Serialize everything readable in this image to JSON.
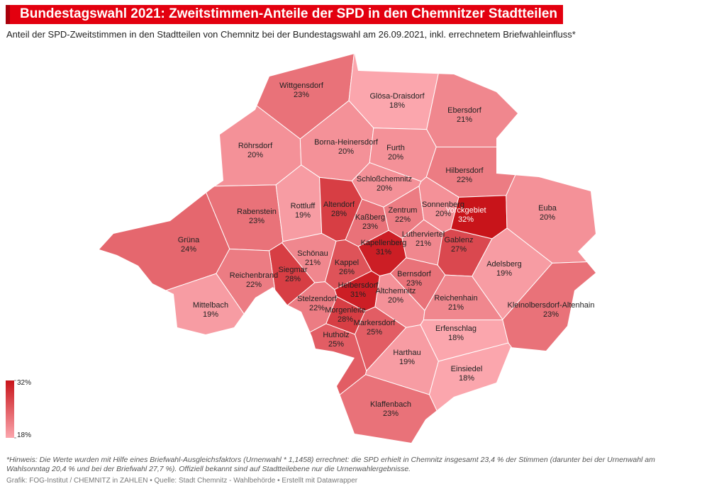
{
  "chart_data": {
    "type": "choropleth",
    "title": "Bundestagswahl 2021: Zweitstimmen-Anteile der SPD in den Chemnitzer Stadtteilen",
    "subtitle": "Anteil der SPD-Zweitstimmen in den Stadtteilen von Chemnitz bei der Bundestagswahl am 26.09.2021, inkl. errechnetem Briefwahleinfluss*",
    "categories": [
      "Wittgensdorf",
      "Glösa-Draisdorf",
      "Ebersdorf",
      "Röhrsdorf",
      "Borna-Heinersdorf",
      "Furth",
      "Hilbersdorf",
      "Schloßchemnitz",
      "Rabenstein",
      "Rottluff",
      "Altendorf",
      "Kaßberg",
      "Zentrum",
      "Sonnenberg",
      "Yorckgebiet",
      "Euba",
      "Grüna",
      "Lutherviertel",
      "Kapellenberg",
      "Gablenz",
      "Schönau",
      "Kappel",
      "Siegmar",
      "Reichenbrand",
      "Adelsberg",
      "Bernsdorf",
      "Helbersdorf",
      "Altchemnitz",
      "Reichenhain",
      "Mittelbach",
      "Stelzendorf",
      "Kleinolbersdorf-Altenhain",
      "Morgenleite",
      "Markersdorf",
      "Erfenschlag",
      "Hutholz",
      "Harthau",
      "Einsiedel",
      "Klaffenbach"
    ],
    "values": [
      23,
      18,
      21,
      20,
      20,
      20,
      22,
      20,
      23,
      19,
      28,
      23,
      22,
      20,
      32,
      20,
      24,
      21,
      31,
      27,
      21,
      26,
      28,
      22,
      19,
      23,
      31,
      20,
      21,
      19,
      22,
      23,
      28,
      25,
      18,
      25,
      19,
      18,
      23
    ],
    "value_labels": [
      "23%",
      "18%",
      "21%",
      "20%",
      "20%",
      "20%",
      "22%",
      "20%",
      "23%",
      "19%",
      "28%",
      "23%",
      "22%",
      "20%",
      "32%",
      "20%",
      "24%",
      "21%",
      "31%",
      "27%",
      "21%",
      "26%",
      "28%",
      "22%",
      "19%",
      "23%",
      "31%",
      "20%",
      "21%",
      "19%",
      "22%",
      "23%",
      "28%",
      "25%",
      "18%",
      "25%",
      "19%",
      "18%",
      "23%"
    ],
    "colors": [
      "#fba6ad",
      "#c8141a"
    ],
    "colorlim": [
      18,
      32
    ],
    "colorticks": [
      {
        "value": 32,
        "label": "32%"
      },
      {
        "value": 18,
        "label": "18%"
      }
    ],
    "note": "*Hinweis: Die Werte wurden mit Hilfe eines Briefwahl-Ausgleichsfaktors (Urnenwahl * 1,1458) errechnet: die SPD erhielt in Chemnitz insgesamt 23,4 % der Stimmen (darunter bei der Urnenwahl am Wahlsonntag 20,4 % und bei der Briefwahl 27,7 %). Offiziell bekannt sind auf Stadtteilebene nur die Urnenwahlergebnisse.",
    "source": "Grafik: FOG-Institut / CHEMNITZ in ZAHLEN • Quelle: Stadt Chemnitz - Wahlbehörde • Erstellt mit Datawrapper"
  }
}
